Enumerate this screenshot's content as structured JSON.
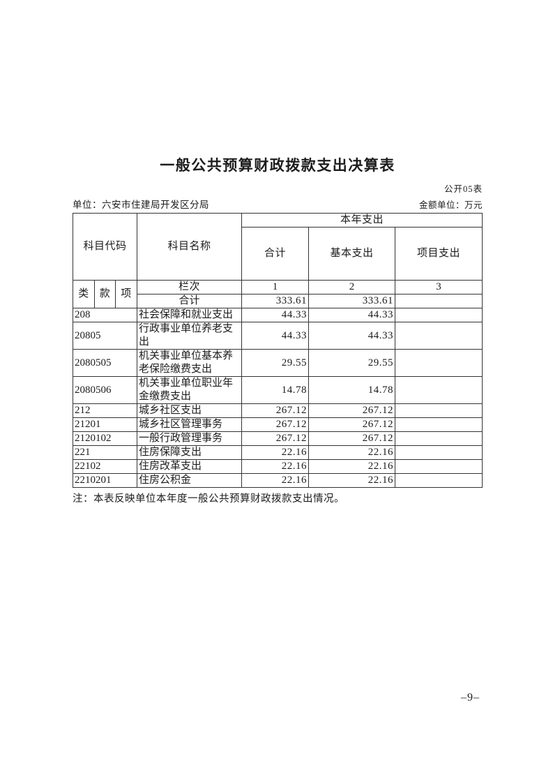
{
  "document": {
    "title": "一般公共预算财政拨款支出决算表",
    "form_code": "公开05表",
    "unit_line": "单位：六安市住建局开发区分局",
    "amount_unit_line": "金额单位：万元",
    "note": "注：本表反映单位本年度一般公共预算财政拨款支出情况。",
    "page_number": "–9–"
  },
  "table": {
    "header": {
      "subject_code": "科目代码",
      "subject_name": "科目名称",
      "current_year_expenditure": "本年支出",
      "total": "合计",
      "basic_expenditure": "基本支出",
      "project_expenditure": "项目支出",
      "class": "类",
      "section": "款",
      "item": "项",
      "column_index_label": "栏次",
      "column_numbers": [
        "1",
        "2",
        "3"
      ]
    },
    "total_row": {
      "name": "合计",
      "total": "333.61",
      "basic": "333.61",
      "project": ""
    },
    "rows": [
      {
        "code": "208",
        "name": "社会保障和就业支出",
        "total": "44.33",
        "basic": "44.33",
        "project": ""
      },
      {
        "code": "20805",
        "name": "行政事业单位养老支出",
        "total": "44.33",
        "basic": "44.33",
        "project": ""
      },
      {
        "code": "2080505",
        "name": "机关事业单位基本养老保险缴费支出",
        "total": "29.55",
        "basic": "29.55",
        "project": ""
      },
      {
        "code": "2080506",
        "name": "机关事业单位职业年金缴费支出",
        "total": "14.78",
        "basic": "14.78",
        "project": ""
      },
      {
        "code": "212",
        "name": "城乡社区支出",
        "total": "267.12",
        "basic": "267.12",
        "project": ""
      },
      {
        "code": "21201",
        "name": "城乡社区管理事务",
        "total": "267.12",
        "basic": "267.12",
        "project": ""
      },
      {
        "code": "2120102",
        "name": "一般行政管理事务",
        "total": "267.12",
        "basic": "267.12",
        "project": ""
      },
      {
        "code": "221",
        "name": "住房保障支出",
        "total": "22.16",
        "basic": "22.16",
        "project": ""
      },
      {
        "code": "22102",
        "name": "住房改革支出",
        "total": "22.16",
        "basic": "22.16",
        "project": ""
      },
      {
        "code": "2210201",
        "name": "住房公积金",
        "total": "22.16",
        "basic": "22.16",
        "project": ""
      }
    ]
  }
}
